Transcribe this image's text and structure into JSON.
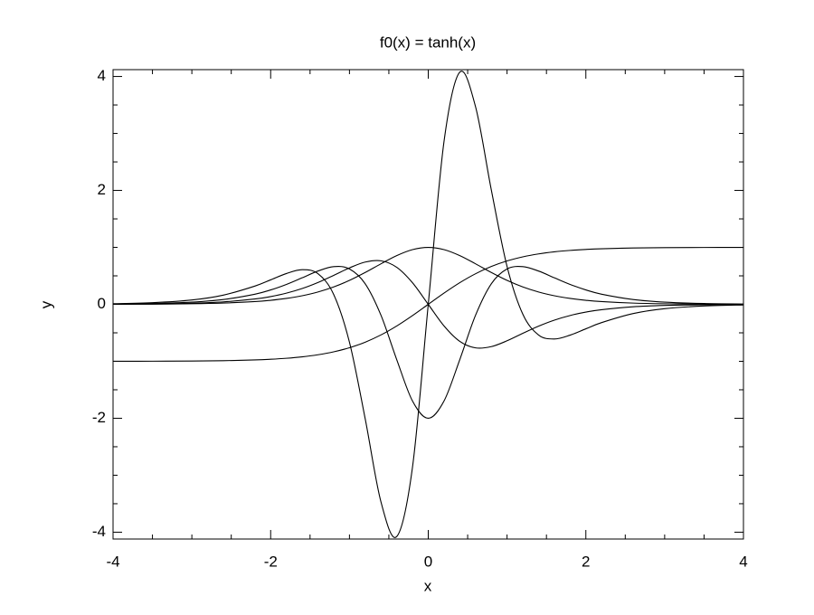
{
  "chart_data": {
    "type": "line",
    "title": "f0(x) = tanh(x)",
    "x_label": "x",
    "y_label": "y",
    "x": [
      -4,
      -3.5,
      -3,
      -2.6,
      -2.2,
      -2,
      -1.8,
      -1.6,
      -1.4,
      -1.2,
      -1,
      -0.8,
      -0.6,
      -0.4,
      -0.2,
      0,
      0.2,
      0.4,
      0.6,
      0.8,
      1,
      1.2,
      1.4,
      1.6,
      1.8,
      2,
      2.2,
      2.6,
      3,
      3.5,
      4
    ],
    "series": [
      {
        "color": "#000000",
        "values": [
          -0.9993,
          -0.9982,
          -0.9951,
          -0.989,
          -0.9757,
          -0.964,
          -0.9468,
          -0.9217,
          -0.8854,
          -0.8337,
          -0.7616,
          -0.664,
          -0.537,
          -0.3799,
          -0.1974,
          0,
          0.1974,
          0.3799,
          0.537,
          0.664,
          0.7616,
          0.8337,
          0.8854,
          0.9217,
          0.9468,
          0.964,
          0.9757,
          0.989,
          0.9951,
          0.9982,
          0.9993
        ]
      },
      {
        "color": "#000000",
        "values": [
          0.00134,
          0.00364,
          0.00987,
          0.0219,
          0.048,
          0.0707,
          0.1036,
          0.1505,
          0.2161,
          0.305,
          0.42,
          0.5591,
          0.7116,
          0.8557,
          0.961,
          1,
          0.961,
          0.8557,
          0.7116,
          0.5591,
          0.42,
          0.305,
          0.2161,
          0.1505,
          0.1036,
          0.0707,
          0.048,
          0.0219,
          0.00987,
          0.00364,
          0.00134
        ]
      },
      {
        "color": "#000000",
        "values": [
          0.0027,
          0.0073,
          0.0196,
          0.0433,
          0.0937,
          0.1363,
          0.1962,
          0.2774,
          0.3827,
          0.5086,
          0.6397,
          0.7425,
          0.7643,
          0.6502,
          0.3794,
          0,
          -0.3794,
          -0.6502,
          -0.7643,
          -0.7425,
          -0.6397,
          -0.5086,
          -0.3827,
          -0.2774,
          -0.1962,
          -0.1363,
          -0.0937,
          -0.0433,
          -0.0196,
          -0.0073,
          -0.0027
        ]
      },
      {
        "color": "#000000",
        "values": [
          0.0053,
          0.0145,
          0.0389,
          0.0847,
          0.1782,
          0.2528,
          0.35,
          0.4661,
          0.5842,
          0.6619,
          0.6216,
          0.3608,
          -0.1918,
          -0.9705,
          -1.697,
          -2,
          -1.697,
          -0.9705,
          -0.1918,
          0.3608,
          0.6216,
          0.6619,
          0.5842,
          0.4661,
          0.35,
          0.2528,
          0.1782,
          0.0847,
          0.0389,
          0.0145,
          0.0053
        ]
      },
      {
        "color": "#000000",
        "values": [
          0.0107,
          0.0287,
          0.0762,
          0.1619,
          0.3207,
          0.4296,
          0.5408,
          0.6087,
          0.5384,
          0.1729,
          -0.6653,
          -2.011,
          -3.469,
          -4.076,
          -2.858,
          0,
          2.858,
          4.076,
          3.469,
          2.011,
          0.6653,
          -0.1729,
          -0.5384,
          -0.6087,
          -0.5408,
          -0.4296,
          -0.3207,
          -0.1619,
          -0.0762,
          -0.0287,
          -0.0107
        ]
      }
    ],
    "xlim": [
      -4,
      4
    ],
    "ylim": [
      -4.12,
      4.12
    ],
    "xticks": [
      -4,
      -2,
      0,
      2,
      4
    ],
    "yticks": [
      -4,
      -2,
      0,
      2,
      4
    ],
    "xminorticks": [
      -3.5,
      -3,
      -2.5,
      -1.5,
      -1,
      -0.5,
      0.5,
      1,
      1.5,
      2.5,
      3,
      3.5
    ],
    "yminorticks": [
      -3.5,
      -3,
      -2.5,
      -1.5,
      -1,
      -0.5,
      0.5,
      1,
      1.5,
      2.5,
      3,
      3.5
    ],
    "grid": false
  }
}
